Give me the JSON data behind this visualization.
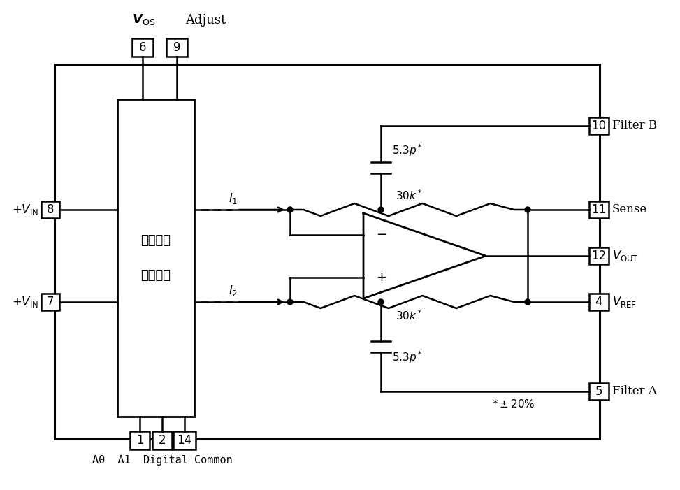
{
  "bg_color": "#ffffff",
  "line_color": "#000000",
  "fig_width": 9.73,
  "fig_height": 7.01,
  "chinese_line1": "前后端和",
  "chinese_line2": "逻辑电路",
  "bottom_label": "A0  A1  Digital Common"
}
